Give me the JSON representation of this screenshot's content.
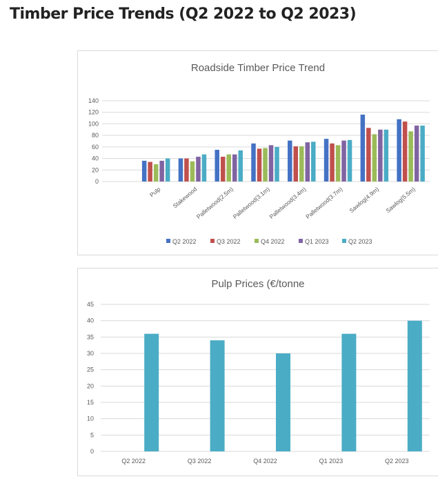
{
  "page": {
    "heading": "Timber Price Trends (Q2 2022 to Q2 2023)"
  },
  "chart_data": [
    {
      "type": "bar",
      "title": "Roadside Timber Price Trend",
      "categories": [
        "Pulp",
        "Stakewood",
        "Palletwood(2.5m)",
        "Palletwood(3.1m)",
        "Palletwood(3.4m)",
        "Palletwood(3.7m)",
        "Sawlog(4.9m)",
        "Sawlog(5.5m)"
      ],
      "series": [
        {
          "name": "Q2 2022",
          "color": "#4472c4",
          "values": [
            36,
            40,
            55,
            66,
            71,
            74,
            116,
            108
          ]
        },
        {
          "name": "Q3 2022",
          "color": "#c0504d",
          "values": [
            34,
            40,
            43,
            57,
            61,
            66,
            93,
            104
          ]
        },
        {
          "name": "Q4 2022",
          "color": "#9bbb59",
          "values": [
            30,
            35,
            47,
            58,
            61,
            63,
            82,
            87
          ]
        },
        {
          "name": "Q1 2023",
          "color": "#8064a2",
          "values": [
            36,
            43,
            47,
            63,
            68,
            71,
            90,
            97
          ]
        },
        {
          "name": "Q2 2023",
          "color": "#4bacc6",
          "values": [
            40,
            47,
            54,
            60,
            69,
            72,
            90,
            97
          ]
        }
      ],
      "ylim": [
        0,
        140
      ],
      "yticks": [
        "0",
        "20",
        "40",
        "60",
        "80",
        "100",
        "120",
        "140"
      ],
      "grid": true,
      "legend": "bottom"
    },
    {
      "type": "bar",
      "title": "Pulp Prices (€/tonne",
      "categories": [
        "Q2 2022",
        "Q3 2022",
        "Q4 2022",
        "Q1 2023",
        "Q2 2023"
      ],
      "values": [
        36,
        34,
        30,
        36,
        40
      ],
      "color": "#4bacc6",
      "ylim": [
        0,
        45
      ],
      "yticks": [
        "0",
        "5",
        "10",
        "15",
        "20",
        "25",
        "30",
        "35",
        "40",
        "45"
      ],
      "grid": true
    }
  ]
}
